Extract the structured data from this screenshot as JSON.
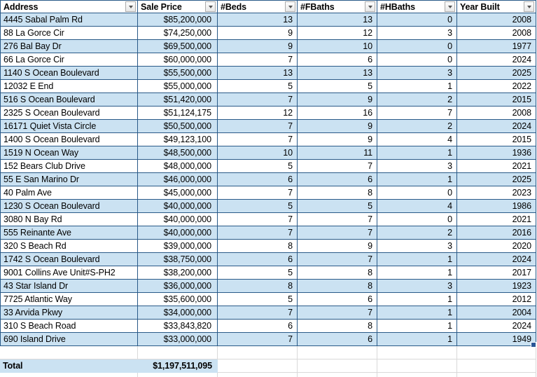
{
  "sheet": {
    "columns": [
      {
        "label": "Address"
      },
      {
        "label": "Sale Price"
      },
      {
        "label": "#Beds"
      },
      {
        "label": "#FBaths"
      },
      {
        "label": "#HBaths"
      },
      {
        "label": "Year Built"
      }
    ],
    "rows": [
      {
        "address": "4445 Sabal Palm Rd",
        "sale_price": "$85,200,000",
        "beds": "13",
        "fbaths": "13",
        "hbaths": "0",
        "year_built": "2008"
      },
      {
        "address": "88 La Gorce Cir",
        "sale_price": "$74,250,000",
        "beds": "9",
        "fbaths": "12",
        "hbaths": "3",
        "year_built": "2008"
      },
      {
        "address": "276 Bal Bay Dr",
        "sale_price": "$69,500,000",
        "beds": "9",
        "fbaths": "10",
        "hbaths": "0",
        "year_built": "1977"
      },
      {
        "address": "66 La Gorce Cir",
        "sale_price": "$60,000,000",
        "beds": "7",
        "fbaths": "6",
        "hbaths": "0",
        "year_built": "2024"
      },
      {
        "address": "1140 S Ocean Boulevard",
        "sale_price": "$55,500,000",
        "beds": "13",
        "fbaths": "13",
        "hbaths": "3",
        "year_built": "2025"
      },
      {
        "address": "12032 E End",
        "sale_price": "$55,000,000",
        "beds": "5",
        "fbaths": "5",
        "hbaths": "1",
        "year_built": "2022"
      },
      {
        "address": "516 S Ocean Boulevard",
        "sale_price": "$51,420,000",
        "beds": "7",
        "fbaths": "9",
        "hbaths": "2",
        "year_built": "2015"
      },
      {
        "address": "2325 S Ocean Boulevard",
        "sale_price": "$51,124,175",
        "beds": "12",
        "fbaths": "16",
        "hbaths": "7",
        "year_built": "2008"
      },
      {
        "address": "16171 Quiet Vista Circle",
        "sale_price": "$50,500,000",
        "beds": "7",
        "fbaths": "9",
        "hbaths": "2",
        "year_built": "2024"
      },
      {
        "address": "1400 S Ocean Boulevard",
        "sale_price": "$49,123,100",
        "beds": "7",
        "fbaths": "9",
        "hbaths": "4",
        "year_built": "2015"
      },
      {
        "address": "1519 N Ocean Way",
        "sale_price": "$48,500,000",
        "beds": "10",
        "fbaths": "11",
        "hbaths": "1",
        "year_built": "1936"
      },
      {
        "address": "152 Bears Club Drive",
        "sale_price": "$48,000,000",
        "beds": "5",
        "fbaths": "7",
        "hbaths": "3",
        "year_built": "2021"
      },
      {
        "address": "55 E San Marino Dr",
        "sale_price": "$46,000,000",
        "beds": "6",
        "fbaths": "6",
        "hbaths": "1",
        "year_built": "2025"
      },
      {
        "address": "40 Palm Ave",
        "sale_price": "$45,000,000",
        "beds": "7",
        "fbaths": "8",
        "hbaths": "0",
        "year_built": "2023"
      },
      {
        "address": "1230 S Ocean Boulevard",
        "sale_price": "$40,000,000",
        "beds": "5",
        "fbaths": "5",
        "hbaths": "4",
        "year_built": "1986"
      },
      {
        "address": "3080 N Bay Rd",
        "sale_price": "$40,000,000",
        "beds": "7",
        "fbaths": "7",
        "hbaths": "0",
        "year_built": "2021"
      },
      {
        "address": "555 Reinante Ave",
        "sale_price": "$40,000,000",
        "beds": "7",
        "fbaths": "7",
        "hbaths": "2",
        "year_built": "2016"
      },
      {
        "address": "320 S Beach Rd",
        "sale_price": "$39,000,000",
        "beds": "8",
        "fbaths": "9",
        "hbaths": "3",
        "year_built": "2020"
      },
      {
        "address": "1742 S Ocean Boulevard",
        "sale_price": "$38,750,000",
        "beds": "6",
        "fbaths": "7",
        "hbaths": "1",
        "year_built": "2024"
      },
      {
        "address": "9001 Collins Ave Unit#S-PH2",
        "sale_price": "$38,200,000",
        "beds": "5",
        "fbaths": "8",
        "hbaths": "1",
        "year_built": "2017"
      },
      {
        "address": "43 Star Island Dr",
        "sale_price": "$36,000,000",
        "beds": "8",
        "fbaths": "8",
        "hbaths": "3",
        "year_built": "1923"
      },
      {
        "address": "7725 Atlantic Way",
        "sale_price": "$35,600,000",
        "beds": "5",
        "fbaths": "6",
        "hbaths": "1",
        "year_built": "2012"
      },
      {
        "address": "33 Arvida Pkwy",
        "sale_price": "$34,000,000",
        "beds": "7",
        "fbaths": "7",
        "hbaths": "1",
        "year_built": "2004"
      },
      {
        "address": "310 S Beach Road",
        "sale_price": "$33,843,820",
        "beds": "6",
        "fbaths": "8",
        "hbaths": "1",
        "year_built": "2024"
      },
      {
        "address": "690 Island Drive",
        "sale_price": "$33,000,000",
        "beds": "7",
        "fbaths": "6",
        "hbaths": "1",
        "year_built": "1949"
      }
    ],
    "total": {
      "label": "Total",
      "value": "$1,197,511,095"
    },
    "colors": {
      "band_fill": "#cbe2f2",
      "table_border": "#2a5a88",
      "gridline": "#d9d9d9",
      "fill_handle": "#2b5797"
    }
  }
}
